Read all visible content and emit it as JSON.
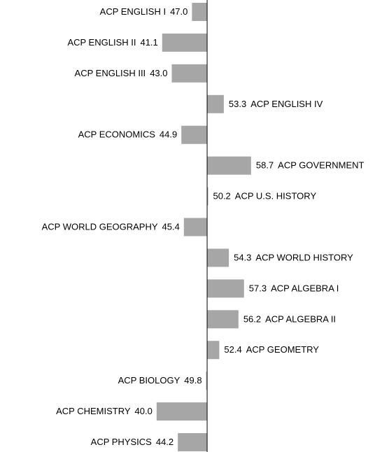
{
  "chart_data": {
    "type": "bar",
    "orientation": "horizontal",
    "categories": [
      "ACP ENGLISH I",
      "ACP ENGLISH II",
      "ACP ENGLISH III",
      "ACP ENGLISH IV",
      "ACP ECONOMICS",
      "ACP GOVERNMENT",
      "ACP U.S. HISTORY",
      "ACP WORLD GEOGRAPHY",
      "ACP WORLD HISTORY",
      "ACP ALGEBRA I",
      "ACP ALGEBRA II",
      "ACP GEOMETRY",
      "ACP BIOLOGY",
      "ACP CHEMISTRY",
      "ACP PHYSICS"
    ],
    "values": [
      47.0,
      41.1,
      43.0,
      53.3,
      44.9,
      58.7,
      50.2,
      45.4,
      54.3,
      57.3,
      56.2,
      52.4,
      49.8,
      40.0,
      44.2
    ],
    "value_labels": [
      "47.0",
      "41.1",
      "43.0",
      "53.3",
      "44.9",
      "58.7",
      "50.2",
      "45.4",
      "54.3",
      "57.3",
      "56.2",
      "52.4",
      "49.8",
      "40.0",
      "44.2"
    ],
    "color": "#a6a6a6",
    "xlim": [
      9,
      86
    ],
    "baseline": 50
  }
}
